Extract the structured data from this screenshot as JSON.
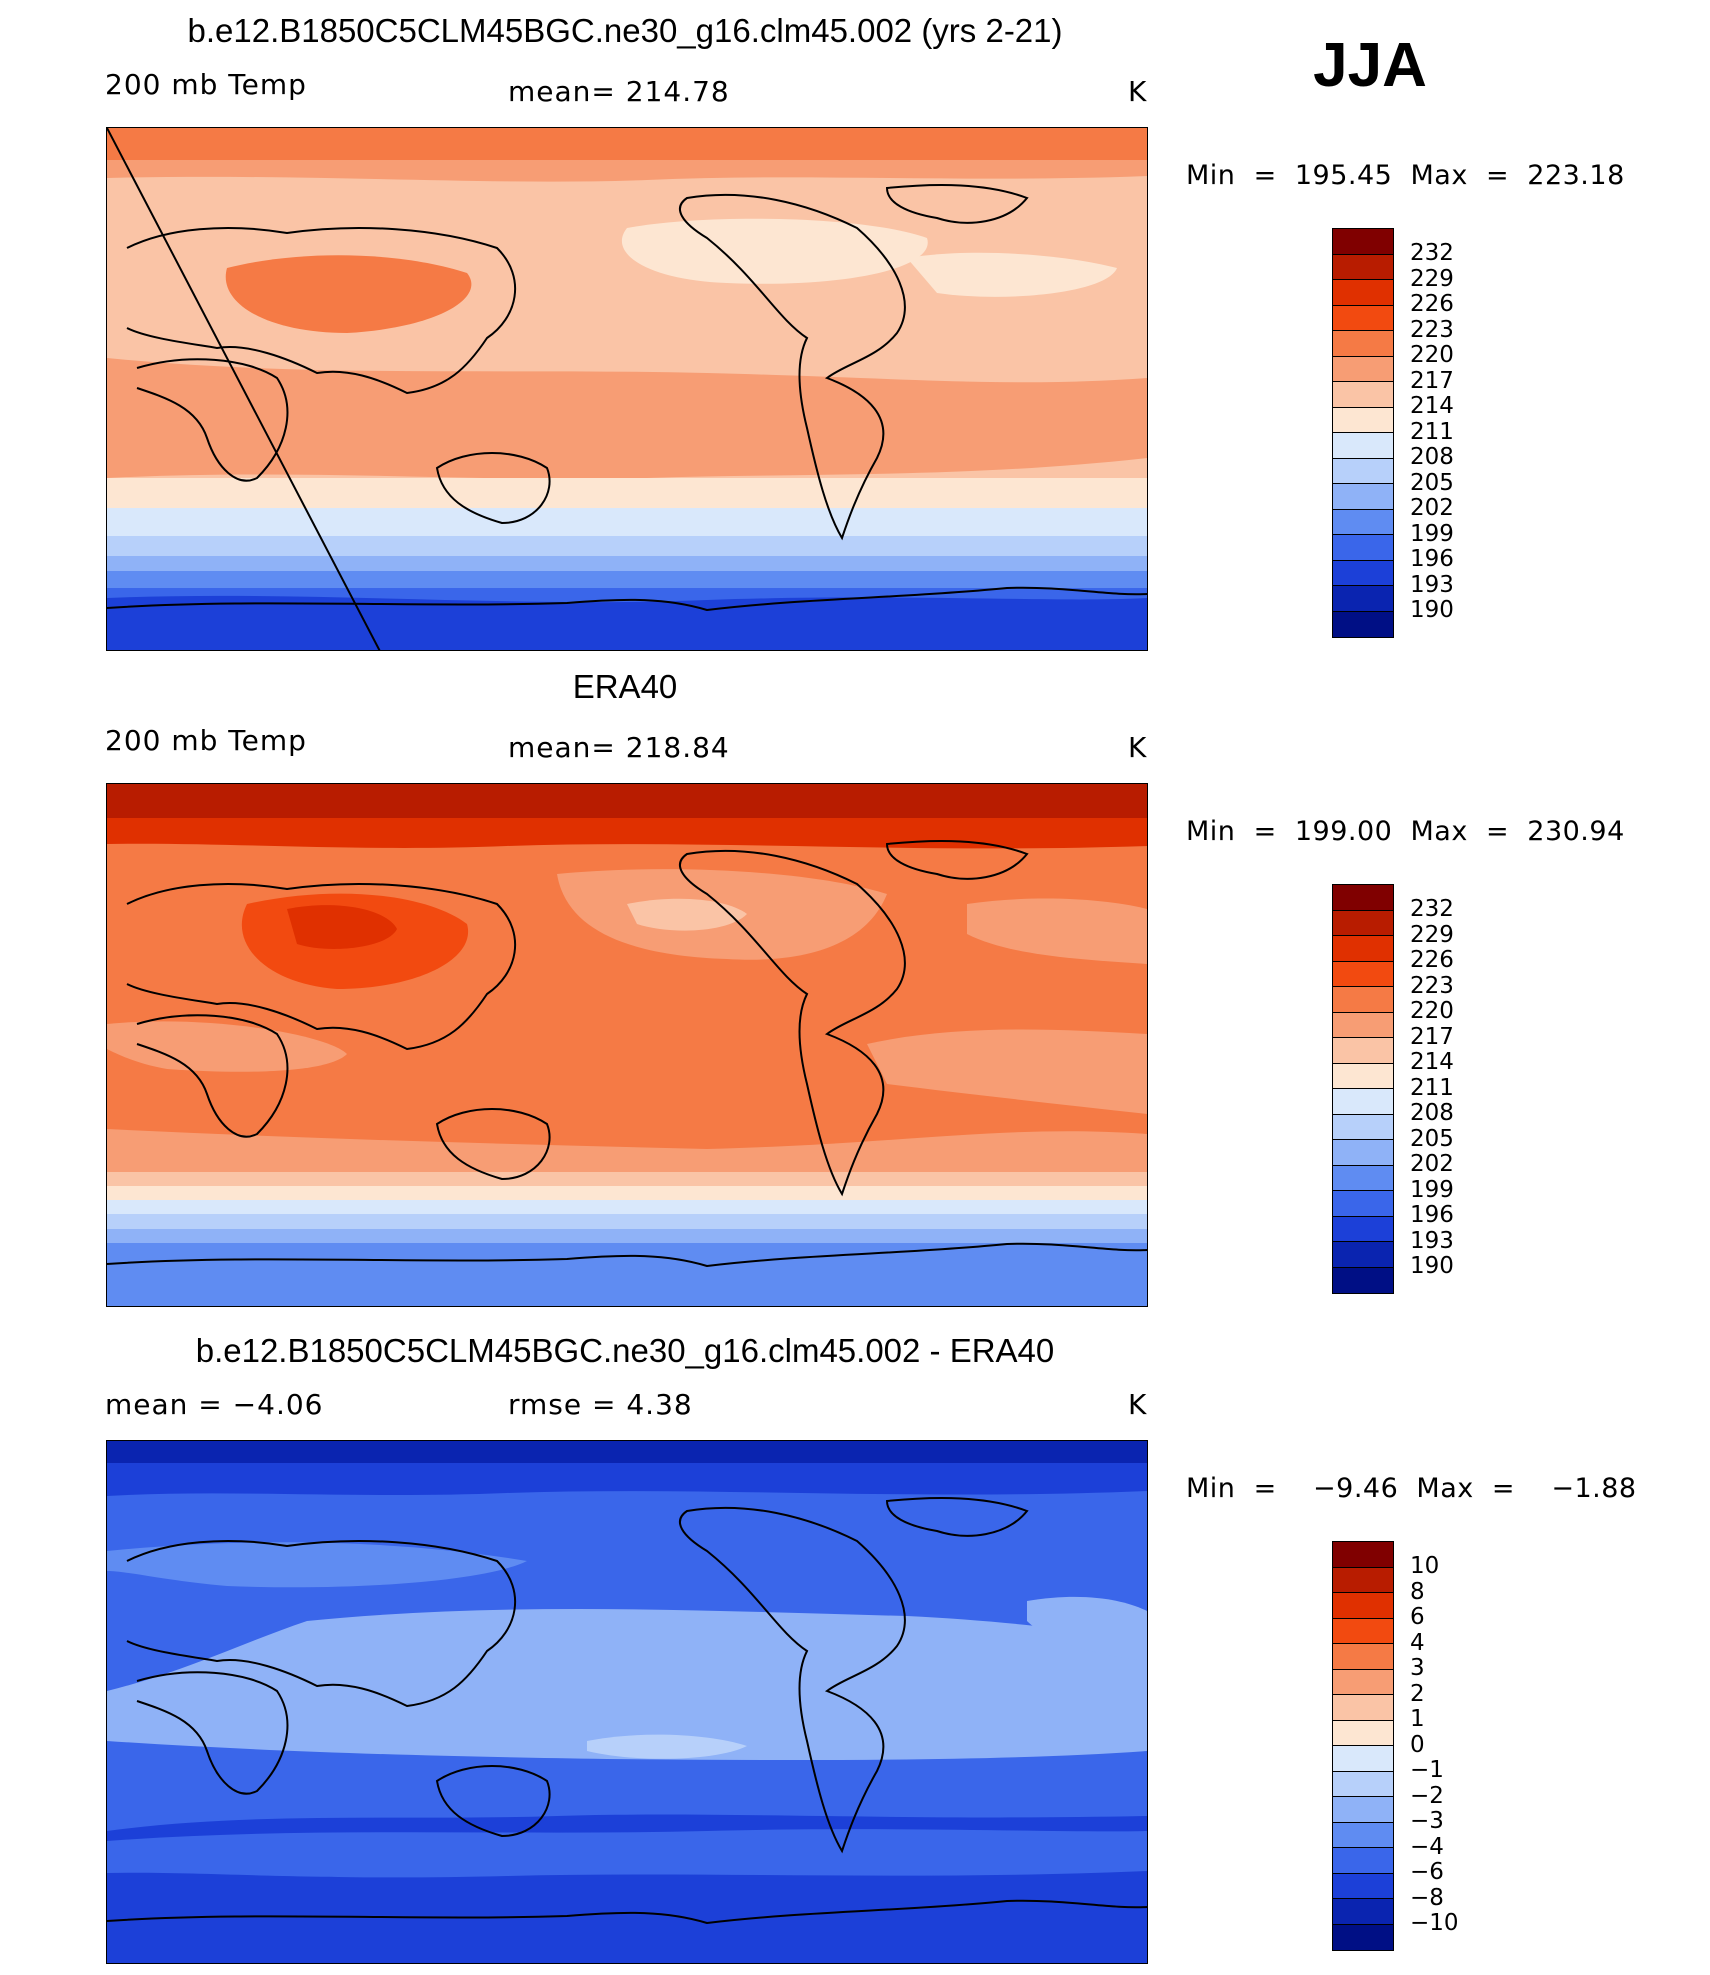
{
  "season": "JJA",
  "panels": [
    {
      "title": "b.e12.B1850C5CLM45BGC.ne30_g16.clm45.002 (yrs 2-21)",
      "left_label": "200 mb Temp",
      "center_label": "mean=  214.78",
      "units": "K",
      "minmax": "Min  =  195.45  Max  =  223.18",
      "colorbar": [
        "232",
        "229",
        "226",
        "223",
        "220",
        "217",
        "214",
        "211",
        "208",
        "205",
        "202",
        "199",
        "196",
        "193",
        "190"
      ]
    },
    {
      "title": "ERA40",
      "left_label": "200 mb Temp",
      "center_label": "mean=  218.84",
      "units": "K",
      "minmax": "Min  =  199.00  Max  =  230.94",
      "colorbar": [
        "232",
        "229",
        "226",
        "223",
        "220",
        "217",
        "214",
        "211",
        "208",
        "205",
        "202",
        "199",
        "196",
        "193",
        "190"
      ]
    },
    {
      "title": "b.e12.B1850C5CLM45BGC.ne30_g16.clm45.002 - ERA40",
      "left_label": "mean  =    −4.06",
      "center_label": "rmse  =     4.38",
      "units": "K",
      "minmax": "Min  =    −9.46  Max  =    −1.88",
      "colorbar": [
        "10",
        "8",
        "6",
        "4",
        "3",
        "2",
        "1",
        "0",
        "−1",
        "−2",
        "−3",
        "−4",
        "−6",
        "−8",
        "−10"
      ]
    }
  ],
  "palette": [
    "#800000",
    "#b81c00",
    "#e03000",
    "#f24a10",
    "#f57a45",
    "#f79d74",
    "#fac4a6",
    "#fde6d2",
    "#d9e8fb",
    "#b7d0fa",
    "#8fb2f7",
    "#5f8cf2",
    "#3a66ea",
    "#1c40d8",
    "#0a24b0",
    "#000f85"
  ],
  "chart_data": [
    {
      "type": "heatmap",
      "title": "b.e12.B1850C5CLM45BGC.ne30_g16.clm45.002 (yrs 2-21)",
      "field": "200 mb Temp",
      "units": "K",
      "mean": 214.78,
      "min": 195.45,
      "max": 223.18,
      "contour_levels": [
        190,
        193,
        196,
        199,
        202,
        205,
        208,
        211,
        214,
        217,
        220,
        223,
        226,
        229,
        232
      ]
    },
    {
      "type": "heatmap",
      "title": "ERA40",
      "field": "200 mb Temp",
      "units": "K",
      "mean": 218.84,
      "min": 199.0,
      "max": 230.94,
      "contour_levels": [
        190,
        193,
        196,
        199,
        202,
        205,
        208,
        211,
        214,
        217,
        220,
        223,
        226,
        229,
        232
      ]
    },
    {
      "type": "heatmap",
      "title": "b.e12.B1850C5CLM45BGC.ne30_g16.clm45.002 - ERA40",
      "units": "K",
      "mean": -4.06,
      "rmse": 4.38,
      "min": -9.46,
      "max": -1.88,
      "contour_levels": [
        -10,
        -8,
        -6,
        -4,
        -3,
        -2,
        -1,
        0,
        1,
        2,
        3,
        4,
        6,
        8,
        10
      ]
    }
  ]
}
